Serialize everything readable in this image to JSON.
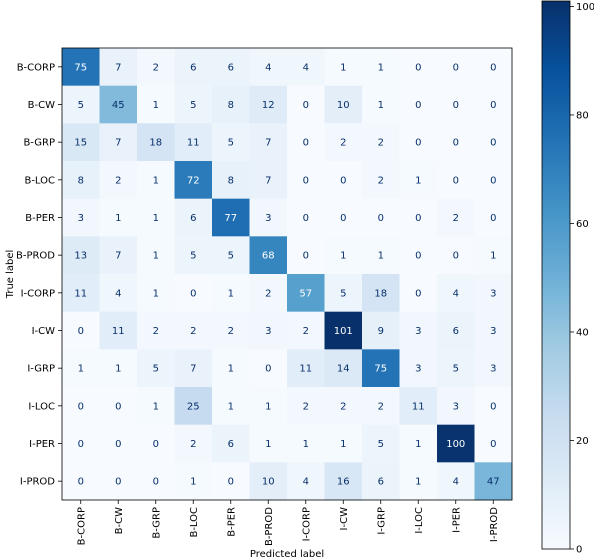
{
  "chart_data": {
    "type": "heatmap",
    "title": "",
    "xlabel": "Predicted label",
    "ylabel": "True label",
    "x_categories": [
      "B-CORP",
      "B-CW",
      "B-GRP",
      "B-LOC",
      "B-PER",
      "B-PROD",
      "I-CORP",
      "I-CW",
      "I-GRP",
      "I-LOC",
      "I-PER",
      "I-PROD"
    ],
    "y_categories": [
      "B-CORP",
      "B-CW",
      "B-GRP",
      "B-LOC",
      "B-PER",
      "B-PROD",
      "I-CORP",
      "I-CW",
      "I-GRP",
      "I-LOC",
      "I-PER",
      "I-PROD"
    ],
    "matrix": [
      [
        75,
        7,
        2,
        6,
        6,
        4,
        4,
        1,
        1,
        0,
        0,
        0
      ],
      [
        5,
        45,
        1,
        5,
        8,
        12,
        0,
        10,
        1,
        0,
        0,
        0
      ],
      [
        15,
        7,
        18,
        11,
        5,
        7,
        0,
        2,
        2,
        0,
        0,
        0
      ],
      [
        8,
        2,
        1,
        72,
        8,
        7,
        0,
        0,
        2,
        1,
        0,
        0
      ],
      [
        3,
        1,
        1,
        6,
        77,
        3,
        0,
        0,
        0,
        0,
        2,
        0
      ],
      [
        13,
        7,
        1,
        5,
        5,
        68,
        0,
        1,
        1,
        0,
        0,
        1
      ],
      [
        11,
        4,
        1,
        0,
        1,
        2,
        57,
        5,
        18,
        0,
        4,
        3
      ],
      [
        0,
        11,
        2,
        2,
        2,
        3,
        2,
        101,
        9,
        3,
        6,
        3
      ],
      [
        1,
        1,
        5,
        7,
        1,
        0,
        11,
        14,
        75,
        3,
        5,
        3
      ],
      [
        0,
        0,
        1,
        25,
        1,
        1,
        2,
        2,
        2,
        11,
        3,
        0
      ],
      [
        0,
        0,
        0,
        2,
        6,
        1,
        1,
        1,
        5,
        1,
        100,
        0
      ],
      [
        0,
        0,
        0,
        1,
        0,
        10,
        4,
        16,
        6,
        1,
        4,
        47
      ]
    ],
    "colormap": "Blues",
    "colorbar": {
      "min": 0,
      "max": 101,
      "ticks": [
        0,
        20,
        40,
        60,
        80,
        100
      ]
    },
    "grid": false,
    "colors": {
      "low": "#f7fbff",
      "high": "#08306b",
      "text_dark": "#08306b",
      "text_light": "#ffffff"
    }
  }
}
